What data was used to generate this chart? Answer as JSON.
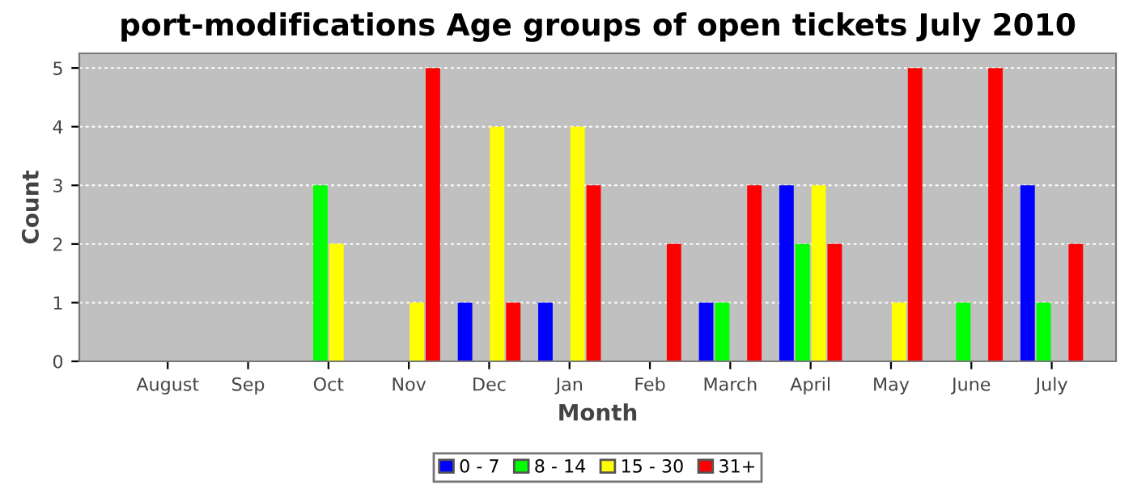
{
  "chart_data": {
    "type": "bar",
    "title": "port-modifications Age groups of open tickets July 2010",
    "xlabel": "Month",
    "ylabel": "Count",
    "categories": [
      "August",
      "Sep",
      "Oct",
      "Nov",
      "Dec",
      "Jan",
      "Feb",
      "March",
      "April",
      "May",
      "June",
      "July"
    ],
    "series": [
      {
        "name": "0 - 7",
        "color": "#0000ff",
        "values": [
          0,
          0,
          0,
          0,
          1,
          1,
          0,
          1,
          3,
          0,
          0,
          3
        ]
      },
      {
        "name": "8 - 14",
        "color": "#00ff00",
        "values": [
          0,
          0,
          3,
          0,
          0,
          0,
          0,
          1,
          2,
          0,
          1,
          1
        ]
      },
      {
        "name": "15 - 30",
        "color": "#ffff00",
        "values": [
          0,
          0,
          2,
          1,
          4,
          4,
          0,
          0,
          3,
          1,
          0,
          0
        ]
      },
      {
        "name": "31+",
        "color": "#ff0000",
        "values": [
          0,
          0,
          0,
          5,
          1,
          3,
          2,
          3,
          2,
          5,
          5,
          2
        ]
      }
    ],
    "ylim": [
      0,
      5.25
    ],
    "yticks": [
      0,
      1,
      2,
      3,
      4,
      5
    ],
    "grid": "y",
    "legend": "bottom"
  }
}
